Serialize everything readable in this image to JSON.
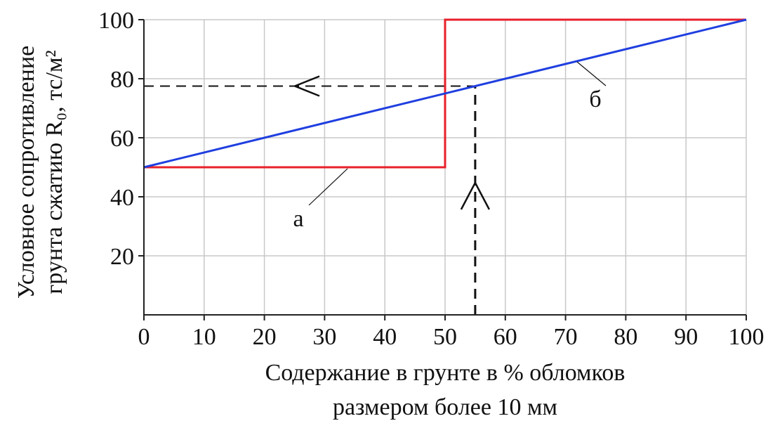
{
  "chart_data": {
    "type": "line",
    "ylabel": [
      "Условное сопротивление",
      "грунта сжатию R₀, тс/м²"
    ],
    "xlabel": [
      "Содержание в грунте в % обломков",
      "размером более 10 мм"
    ],
    "xlim": [
      0,
      100
    ],
    "ylim": [
      0,
      100
    ],
    "xticks": [
      0,
      10,
      20,
      30,
      40,
      50,
      60,
      70,
      80,
      90,
      100
    ],
    "yticks": [
      20,
      40,
      60,
      80,
      100
    ],
    "grid": true,
    "series": [
      {
        "name": "а",
        "color": "#e8202a",
        "x": [
          0,
          50,
          50,
          100
        ],
        "values": [
          50,
          50,
          100,
          100
        ]
      },
      {
        "name": "б",
        "color": "#1f3fe0",
        "x": [
          0,
          100
        ],
        "values": [
          50,
          100
        ]
      }
    ],
    "guide": {
      "x": 55,
      "y": 77.5
    }
  }
}
